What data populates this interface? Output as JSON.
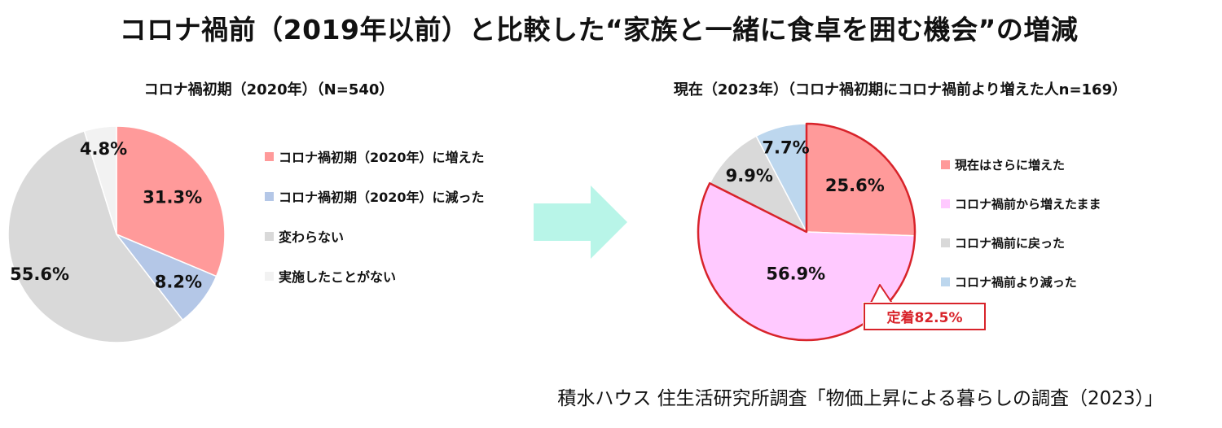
{
  "title": "コロナ禍前（2019年以前）と比較した“家族と一緒に食卓を囲む機会”の増減",
  "source": "積水ハウス 住生活研究所調査「物価上昇による暮らしの調査（2023）」",
  "chart_data": [
    {
      "type": "pie",
      "title": "コロナ禍初期（2020年）（N=540）",
      "categories": [
        "コロナ禍初期（2020年）に増えた",
        "コロナ禍初期（2020年）に減った",
        "変わらない",
        "実施したことがない"
      ],
      "values": [
        31.3,
        8.2,
        55.6,
        4.8
      ],
      "labels": [
        "31.3%",
        "8.2%",
        "55.6%",
        "4.8%"
      ],
      "colors": [
        "#ff9a9a",
        "#b4c7e7",
        "#d9d9d9",
        "#f2f2f2"
      ],
      "legend": "right"
    },
    {
      "type": "pie",
      "title": "現在（2023年）（コロナ禍初期にコロナ禍前より増えた人n=169）",
      "categories": [
        "現在はさらに増えた",
        "コロナ禍前から増えたまま",
        "コロナ禍前に戻った",
        "コロナ禍前より減った"
      ],
      "values": [
        25.6,
        56.9,
        9.9,
        7.7
      ],
      "labels": [
        "25.6%",
        "56.9%",
        "9.9%",
        "7.7%"
      ],
      "colors": [
        "#ff9a9a",
        "#ffc9ff",
        "#d9d9d9",
        "#bdd7ee"
      ],
      "legend": "right",
      "highlight_color": "#d8232a",
      "callout": "定着82.5%"
    }
  ]
}
